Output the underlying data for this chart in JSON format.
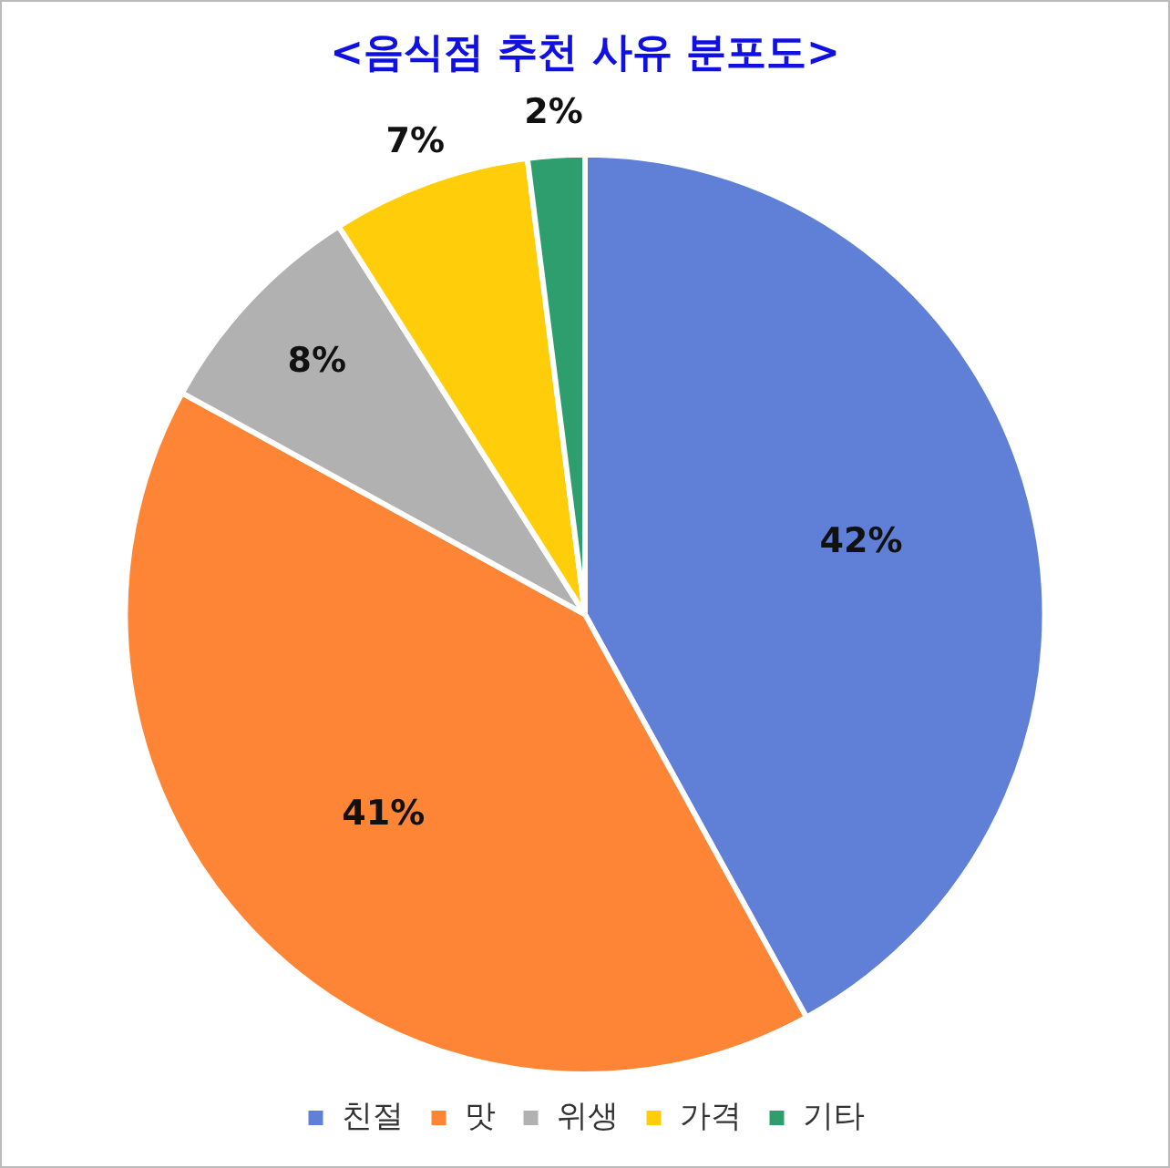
{
  "chart_data": {
    "type": "pie",
    "title": "<음식점 추천 사유 분포도>",
    "categories": [
      "친절",
      "맛",
      "위생",
      "가격",
      "기타"
    ],
    "values": [
      42,
      41,
      8,
      7,
      2
    ],
    "colors": [
      "#5f80d6",
      "#fd8535",
      "#b1b1b1",
      "#ffcd0a",
      "#2f9e6f"
    ],
    "value_labels": [
      "42%",
      "41%",
      "8%",
      "7%",
      "2%"
    ],
    "legend": "bottom"
  }
}
